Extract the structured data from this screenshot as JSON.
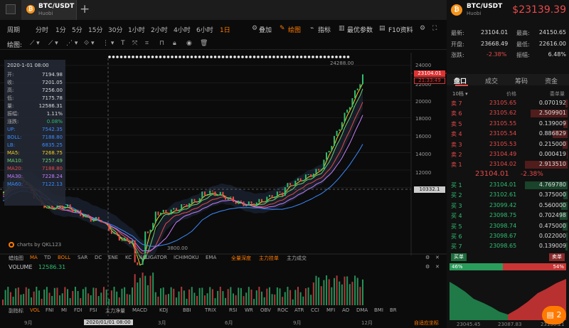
{
  "tab": {
    "title": "BTC/USDT",
    "subtitle": "Huobi",
    "coin_glyph": "₿",
    "new_tab": "+"
  },
  "header": {
    "pair": "BTC/USDT",
    "exchange": "Huobi",
    "price": "$23139.39"
  },
  "stats": [
    {
      "label": "最新:",
      "value": "23104.01",
      "label2": "最高:",
      "value2": "24150.65"
    },
    {
      "label": "开盘:",
      "value": "23668.49",
      "label2": "最低:",
      "value2": "22616.00"
    },
    {
      "label": "涨跌:",
      "value": "-2.38%",
      "label2": "振幅:",
      "value2": "6.48%"
    }
  ],
  "periods": [
    "周期",
    "分时",
    "1分",
    "5分",
    "15分",
    "30分",
    "1小时",
    "2小时",
    "4小时",
    "6小时",
    "1日"
  ],
  "active_period": "1日",
  "toolbar": {
    "overlay": "叠加",
    "draw": "绘图",
    "indicator": "指标",
    "best_params": "最优参数",
    "f10": "F10资料"
  },
  "draw_label": "绘图:",
  "infobox": {
    "date": "2020-1-01 08:00",
    "rows": [
      {
        "k": "开:",
        "v": "7194.98"
      },
      {
        "k": "收:",
        "v": "7201.05"
      },
      {
        "k": "高:",
        "v": "7256.00"
      },
      {
        "k": "低:",
        "v": "7175.78"
      },
      {
        "k": "量:",
        "v": "12586.31"
      },
      {
        "k": "振幅:",
        "v": "1.11%"
      },
      {
        "k": "涨跌:",
        "v": "0.08%"
      },
      {
        "k": "UP:",
        "v": "7542.35"
      },
      {
        "k": "BOLL:",
        "v": "7188.80"
      },
      {
        "k": "LB:",
        "v": "6835.25"
      },
      {
        "k": "MA5:",
        "v": "7268.75"
      },
      {
        "k": "MA10:",
        "v": "7257.49"
      },
      {
        "k": "MA20:",
        "v": "7188.80"
      },
      {
        "k": "MA30:",
        "v": "7228.24"
      },
      {
        "k": "MA60:",
        "v": "7122.13"
      }
    ]
  },
  "yaxis": [
    "24000",
    "22000",
    "20000",
    "18000",
    "16000",
    "14000",
    "12000",
    "10000"
  ],
  "price_tags": {
    "current": "23104.01",
    "countdown": "21:33:49",
    "crosshair": "10332.1",
    "high": "24288.00",
    "low": "3800.00"
  },
  "watermark": "charts by QKL123",
  "indicators": [
    "蜡烛图",
    "MA",
    "TD",
    "BOLL",
    "SAR",
    "DC",
    "ENE",
    "KC",
    "ALLIGATOR",
    "ICHIMOKU",
    "EMA",
    "全量深度",
    "主力挂单",
    "主力成交"
  ],
  "volume": {
    "label": "VOLUME",
    "value": "12586.31"
  },
  "bottom_tabs": [
    "副指标",
    "VOL",
    "FNI",
    "MI",
    "FDI",
    "FSI",
    "主力净量",
    "MACD",
    "KDJ",
    "BBI",
    "TRIX",
    "RSI",
    "WR",
    "OBV",
    "ROC",
    "ATR",
    "CCI",
    "MFI",
    "AO",
    "DMA",
    "BMI",
    "BR"
  ],
  "xaxis": [
    "9月",
    "2020/01/01 08:00",
    "3月",
    "6月",
    "9月",
    "12月"
  ],
  "auto_axis": "自适应坐标",
  "orderbook": {
    "tabs": [
      "盘口",
      "成交",
      "筹码",
      "资金"
    ],
    "active_tab": "盘口",
    "headers": {
      "depth": "10档",
      "price": "价格",
      "qty": "委单量"
    },
    "asks": [
      {
        "label": "卖 7",
        "price": "23105.65",
        "qty": "0.070192",
        "depth": 0.05
      },
      {
        "label": "卖 6",
        "price": "23105.62",
        "qty": "2.509901",
        "depth": 0.86
      },
      {
        "label": "卖 5",
        "price": "23105.55",
        "qty": "0.139009",
        "depth": 0.1
      },
      {
        "label": "卖 4",
        "price": "23105.54",
        "qty": "0.886829",
        "depth": 0.35
      },
      {
        "label": "卖 3",
        "price": "23105.53",
        "qty": "0.215000",
        "depth": 0.12
      },
      {
        "label": "卖 2",
        "price": "23104.49",
        "qty": "0.000419",
        "depth": 0.02
      },
      {
        "label": "卖 1",
        "price": "23104.02",
        "qty": "2.913510",
        "depth": 1.0
      }
    ],
    "mid_price": "23104.01",
    "mid_change": "-2.38%",
    "bids": [
      {
        "label": "买 1",
        "price": "23104.01",
        "qty": "4.769780",
        "depth": 1.0
      },
      {
        "label": "买 2",
        "price": "23102.61",
        "qty": "0.375000",
        "depth": 0.1
      },
      {
        "label": "买 3",
        "price": "23099.42",
        "qty": "0.560000",
        "depth": 0.15
      },
      {
        "label": "买 4",
        "price": "23098.75",
        "qty": "0.702498",
        "depth": 0.18
      },
      {
        "label": "买 5",
        "price": "23098.74",
        "qty": "0.475000",
        "depth": 0.12
      },
      {
        "label": "买 6",
        "price": "23098.67",
        "qty": "0.022000",
        "depth": 0.03
      },
      {
        "label": "买 7",
        "price": "23098.65",
        "qty": "0.139009",
        "depth": 0.05
      }
    ],
    "ratio": {
      "buy_label": "买单",
      "sell_label": "卖单",
      "buy_pct": "46%",
      "sell_pct": "54%",
      "buy_fraction": 0.46
    },
    "depth_axis": [
      "23045.45",
      "23087.83",
      "23130.21"
    ]
  },
  "float_badge": "2",
  "colors": {
    "accent": "#ff7a00",
    "up": "#2fbf71",
    "down": "#e84a4a"
  }
}
